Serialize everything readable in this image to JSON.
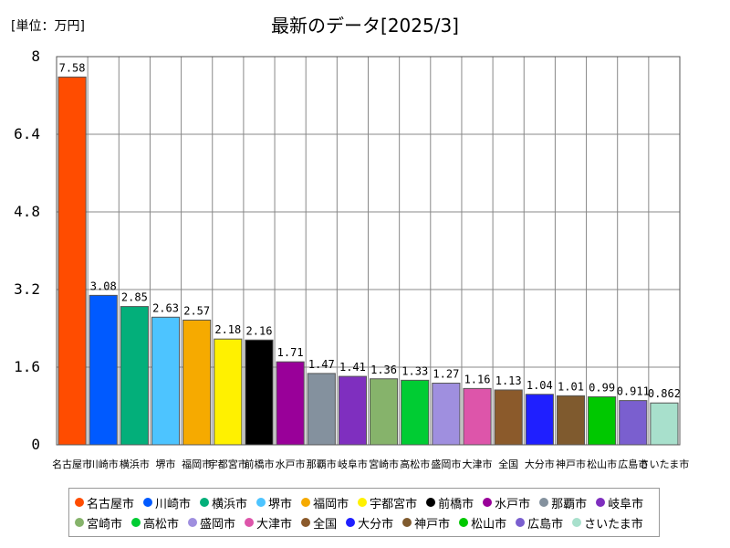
{
  "chart_data": {
    "type": "bar",
    "title": "最新のデータ[2025/3]",
    "unit_label": "[単位：万円]",
    "ylim": [
      0,
      8
    ],
    "yticks": [
      "0",
      "1.6",
      "3.2",
      "4.8",
      "6.4",
      "8"
    ],
    "grid": true,
    "legend_position": "bottom",
    "categories": [
      "名古屋市",
      "川崎市",
      "横浜市",
      "堺市",
      "福岡市",
      "宇都宮市",
      "前橋市",
      "水戸市",
      "那覇市",
      "岐阜市",
      "宮崎市",
      "高松市",
      "盛岡市",
      "大津市",
      "全国",
      "大分市",
      "神戸市",
      "松山市",
      "広島市",
      "さいたま市"
    ],
    "values": [
      7.58,
      3.08,
      2.85,
      2.63,
      2.57,
      2.18,
      2.16,
      1.71,
      1.47,
      1.41,
      1.36,
      1.33,
      1.27,
      1.16,
      1.13,
      1.04,
      1.01,
      0.99,
      0.911,
      0.862
    ],
    "value_labels": [
      "7.58",
      "3.08",
      "2.85",
      "2.63",
      "2.57",
      "2.18",
      "2.16",
      "1.71",
      "1.47",
      "1.41",
      "1.36",
      "1.33",
      "1.27",
      "1.16",
      "1.13",
      "1.04",
      "1.01",
      "0.99",
      "0.911",
      "0.862"
    ],
    "colors": [
      "#ff4c00",
      "#005aff",
      "#03af7a",
      "#4dc4ff",
      "#f6aa00",
      "#fff100",
      "#000000",
      "#990099",
      "#84919e",
      "#7f2fbf",
      "#86b36b",
      "#00cc33",
      "#9f8fdf",
      "#dd55aa",
      "#8b5a2b",
      "#1f1fff",
      "#7f5a2e",
      "#00c800",
      "#7a5fcf",
      "#a8e0cc"
    ]
  }
}
